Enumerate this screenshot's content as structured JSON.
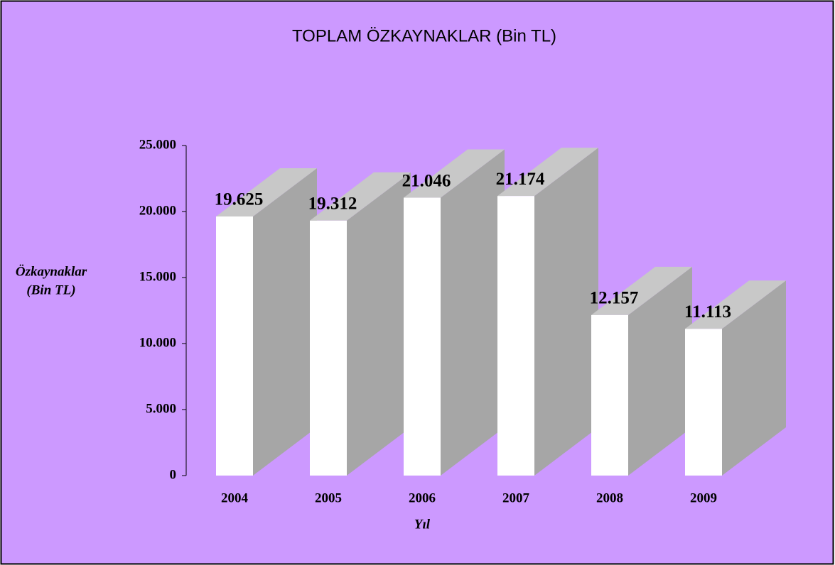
{
  "chart_data": {
    "type": "bar3d",
    "title": "TOPLAM ÖZKAYNAKLAR (Bin TL)",
    "ylabel": [
      "Özkaynaklar",
      "(Bin TL)"
    ],
    "xlabel": "Yıl",
    "categories": [
      "2004",
      "2005",
      "2006",
      "2007",
      "2008",
      "2009"
    ],
    "values": [
      19625,
      19312,
      21046,
      21174,
      12157,
      11113
    ],
    "value_labels": [
      "19.625",
      "19.312",
      "21.046",
      "21.174",
      "12.157",
      "11.113"
    ],
    "ylim": [
      0,
      25000
    ],
    "yticks": [
      0,
      {
        "value": 5000,
        "label": "5.000"
      },
      {
        "value": 10000,
        "label": "10.000"
      },
      {
        "value": 15000,
        "label": "15.000"
      },
      {
        "value": 20000,
        "label": "20.000"
      },
      {
        "value": 25000,
        "label": "25.000"
      }
    ],
    "background": "#cc99ff",
    "color": "#ffffff",
    "side_color": "#a6a6a6",
    "top_color": "#c8c8c8"
  }
}
